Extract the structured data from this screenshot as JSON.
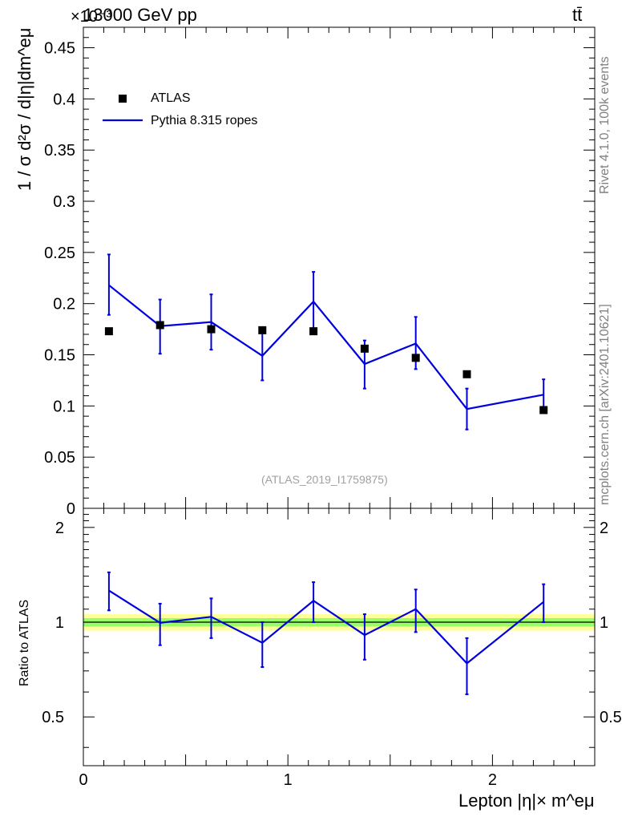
{
  "header": {
    "left": "13000 GeV pp",
    "right": "tt̄",
    "exponent": "×10⁻³"
  },
  "side": {
    "rivet": "Rivet 4.1.0,  100k events",
    "source": "mcplots.cern.ch [arXiv:2401.10621]"
  },
  "watermark": "(ATLAS_2019_I1759875)",
  "legend": {
    "data": "ATLAS",
    "mc": "Pythia 8.315 ropes"
  },
  "axes": {
    "main_ylabel": "1 / σ  d²σ / d|η|dm^eμ",
    "ratio_ylabel": "Ratio to ATLAS",
    "xlabel": "Lepton |η|× m^eμ"
  },
  "colors": {
    "data": "#000000",
    "mc": "#0000dd",
    "band_inner": "#99ff66",
    "band_outer": "#ffff99"
  },
  "chart_data": [
    {
      "type": "scatter",
      "title": "13000 GeV pp  tt̄",
      "xlabel": "Lepton |η|× m^eμ",
      "ylabel": "1 / σ d²σ / d|η|dm^eμ",
      "y_scale": "×10⁻³",
      "xlim": [
        0,
        2.5
      ],
      "ylim": [
        0,
        0.47
      ],
      "yticks": [
        0,
        0.05,
        0.1,
        0.15,
        0.2,
        0.25,
        0.3,
        0.35,
        0.4,
        0.45
      ],
      "xticks": [
        0,
        1,
        2
      ],
      "bin_edges": [
        0,
        0.25,
        0.5,
        0.75,
        1.0,
        1.25,
        1.5,
        1.75,
        2.0,
        2.5
      ],
      "series": [
        {
          "name": "ATLAS",
          "style": "markers",
          "x": [
            0.125,
            0.375,
            0.625,
            0.875,
            1.125,
            1.375,
            1.625,
            1.875,
            2.25
          ],
          "values": [
            0.173,
            0.179,
            0.175,
            0.174,
            0.173,
            0.156,
            0.147,
            0.131,
            0.096
          ]
        },
        {
          "name": "Pythia 8.315 ropes",
          "style": "line",
          "x": [
            0.125,
            0.375,
            0.625,
            0.875,
            1.125,
            1.375,
            1.625,
            1.875,
            2.25
          ],
          "values": [
            0.218,
            0.178,
            0.182,
            0.149,
            0.202,
            0.141,
            0.161,
            0.097,
            0.111
          ],
          "err_low": [
            0.029,
            0.027,
            0.027,
            0.024,
            0.029,
            0.024,
            0.025,
            0.02,
            0.016
          ],
          "err_high": [
            0.03,
            0.026,
            0.027,
            0.025,
            0.029,
            0.023,
            0.026,
            0.02,
            0.015
          ]
        }
      ]
    },
    {
      "type": "line",
      "title": "Ratio to ATLAS",
      "xlabel": "Lepton |η|× m^eμ",
      "ylabel": "Ratio to ATLAS",
      "xlim": [
        0,
        2.5
      ],
      "ylim": [
        0.35,
        2.3
      ],
      "yticks": [
        0.5,
        1,
        2
      ],
      "xticks": [
        0,
        1,
        2
      ],
      "band": {
        "inner": [
          0.97,
          1.03
        ],
        "outer": [
          0.94,
          1.06
        ]
      },
      "series": [
        {
          "name": "Pythia 8.315 ropes / ATLAS",
          "x": [
            0.125,
            0.375,
            0.625,
            0.875,
            1.125,
            1.375,
            1.625,
            1.875,
            2.25
          ],
          "values": [
            1.26,
            0.995,
            1.04,
            0.86,
            1.17,
            0.91,
            1.1,
            0.74,
            1.16
          ],
          "err_low": [
            0.17,
            0.15,
            0.15,
            0.14,
            0.17,
            0.15,
            0.17,
            0.15,
            0.16
          ],
          "err_high": [
            0.18,
            0.15,
            0.15,
            0.14,
            0.17,
            0.15,
            0.17,
            0.15,
            0.16
          ]
        }
      ]
    }
  ]
}
